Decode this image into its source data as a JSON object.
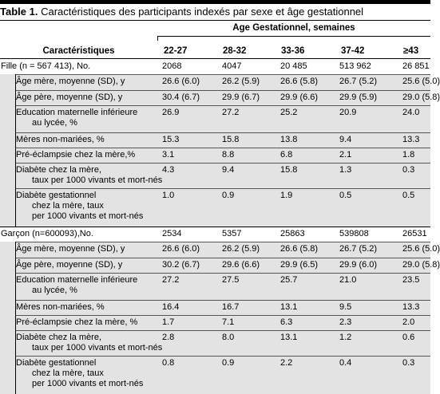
{
  "title": {
    "label": "Table 1.",
    "text": "Caractéristiques des participants indexés par sexe et âge gestationnel"
  },
  "group_header": "Age Gestationnel, semaines",
  "char_header": "Caractéristiques",
  "columns": [
    "22-27",
    "28-32",
    "33-36",
    "37-42",
    "≥43"
  ],
  "fille": {
    "label": "Fille  (n = 567 413), No.",
    "values": [
      "2068",
      "4047",
      "20 485",
      "513 962",
      "26 851"
    ],
    "rows": [
      {
        "label": [
          "Âge mère, moyenne (SD), y"
        ],
        "values": [
          "26.6 (6.0)",
          "26.2 (5.9)",
          "26.6 (5.8)",
          "26.7 (5.2)",
          "25.6 (5.0)"
        ]
      },
      {
        "label": [
          "Âge père, moyenne (SD), y"
        ],
        "values": [
          "30.4 (6.7)",
          "29.9 (6.7)",
          "29.9 (6.6)",
          "29.9 (5.9)",
          "29.0 (5.8)"
        ]
      },
      {
        "label": [
          "Education maternelle inférieure",
          "au lycée, %"
        ],
        "values": [
          "26.9",
          "27.2",
          "25.2",
          "20.9",
          "24.0"
        ]
      },
      {
        "label": [
          "Mères non-mariées, %"
        ],
        "values": [
          "15.3",
          "15.8",
          "13.8",
          "9.4",
          "13.3"
        ]
      },
      {
        "label": [
          "Pré-éclampsie chez la mère,%"
        ],
        "values": [
          "3.1",
          "8.8",
          "6.8",
          "2.1",
          "1.8"
        ]
      },
      {
        "label": [
          "Diabète chez la mère,",
          "taux per 1000 vivants et mort-nés"
        ],
        "values": [
          "4.3",
          "9.4",
          "15.8",
          "1.3",
          "0.3"
        ]
      },
      {
        "label": [
          "Diabète gestationnel",
          "chez la mère, taux",
          "per 1000 vivants et mort-nés"
        ],
        "values": [
          "1.0",
          "0.9",
          "1.9",
          "0.5",
          "0.5"
        ]
      }
    ]
  },
  "garcon": {
    "label": "Garçon (n=600093),No.",
    "values": [
      "2534",
      "5357",
      "25863",
      "539808",
      "26531"
    ],
    "rows": [
      {
        "label": [
          "Âge mère, moyenne (SD), y"
        ],
        "values": [
          "26.6 (6.0)",
          "26.2 (5.9)",
          "26.6 (5.8)",
          "26.7 (5.2)",
          "25.6 (5.0)"
        ]
      },
      {
        "label": [
          "Âge père, moyenne (SD), y"
        ],
        "values": [
          "30.2 (6.7)",
          "29.6 (6.6)",
          "29.9 (6.5)",
          "29.9 (6.0)",
          "29.0 (5.8)"
        ]
      },
      {
        "label": [
          "Education maternelle inférieure",
          "au lycée, %"
        ],
        "values": [
          "27.2",
          "27.5",
          "25.7",
          "21.0",
          "23.5"
        ]
      },
      {
        "label": [
          "Mères non-mariées, %"
        ],
        "values": [
          "16.4",
          "16.7",
          "13.1",
          "9.5",
          "13.3"
        ]
      },
      {
        "label": [
          "Pré-éclampsie chez la mère, %"
        ],
        "values": [
          "1.7",
          "7.1",
          "6.3",
          "2.3",
          "2.0"
        ]
      },
      {
        "label": [
          "Diabète chez la mère,",
          "taux per 1000 vivants et mort-nés"
        ],
        "values": [
          "2.8",
          "8.0",
          "13.1",
          "1.2",
          "0.6"
        ]
      },
      {
        "label": [
          "Diabète gestationnel",
          "chez la mère, taux",
          "per 1000 vivants et mort-nés"
        ],
        "values": [
          "0.8",
          "0.9",
          "2.2",
          "0.4",
          "0.3"
        ]
      }
    ]
  }
}
